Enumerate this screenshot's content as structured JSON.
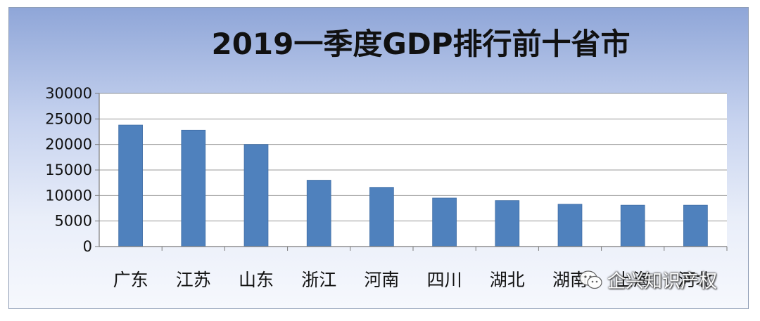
{
  "chart_data": {
    "type": "bar",
    "title": "2019一季度GDP排行前十省市",
    "categories": [
      "广东",
      "江苏",
      "山东",
      "浙江",
      "河南",
      "四川",
      "湖北",
      "湖南",
      "上海",
      "河北"
    ],
    "values": [
      23800,
      22800,
      20000,
      13000,
      11600,
      9500,
      9000,
      8300,
      8100,
      8100
    ],
    "ylim": [
      0,
      30000
    ],
    "yticks": [
      "0",
      "5000",
      "10000",
      "15000",
      "20000",
      "25000",
      "30000"
    ],
    "xlabel": "",
    "ylabel": "",
    "grid": true,
    "bar_color": "#4f81bd",
    "legend": "none"
  },
  "watermark": {
    "icon": "wechat-icon",
    "text": "企兴知识产权"
  }
}
